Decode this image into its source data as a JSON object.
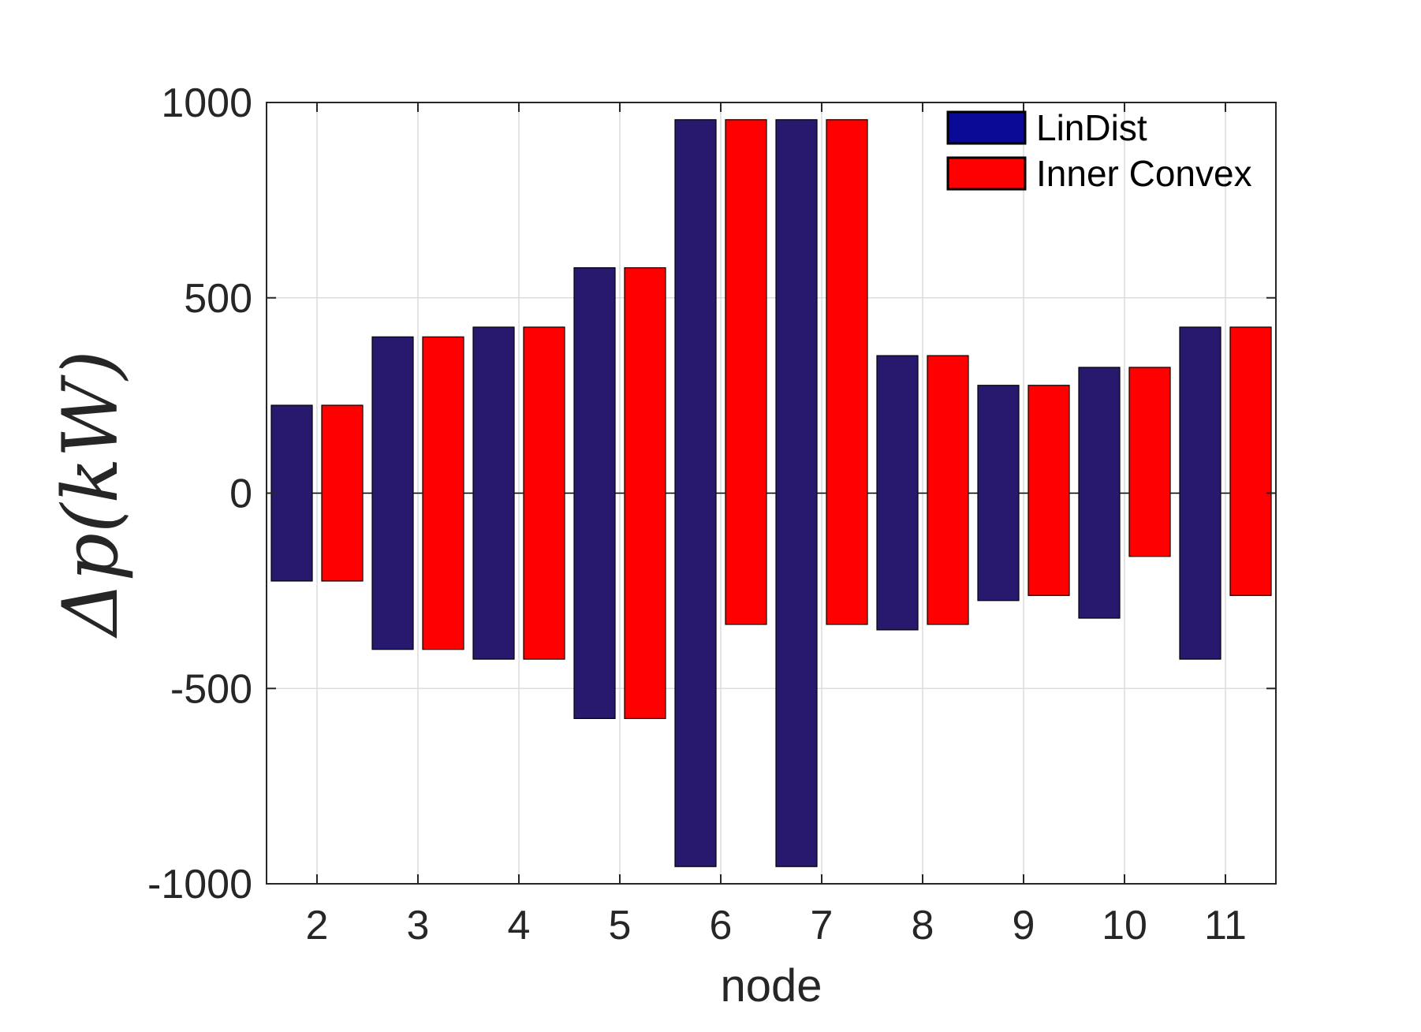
{
  "chart_data": {
    "type": "bar",
    "title": "",
    "xlabel": "node",
    "ylabel": "Δp(kW)",
    "categories": [
      "2",
      "3",
      "4",
      "5",
      "6",
      "7",
      "8",
      "9",
      "10",
      "11"
    ],
    "ylim": [
      -1000,
      1000
    ],
    "yticks": [
      {
        "value": 1000,
        "label": "1000"
      },
      {
        "value": 500,
        "label": "500"
      },
      {
        "value": 0,
        "label": "0"
      },
      {
        "value": -500,
        "label": "-500"
      },
      {
        "value": -1000,
        "label": "-1000"
      }
    ],
    "grid": true,
    "legend_position": "top-right",
    "series": [
      {
        "name": "LinDist",
        "color": "#28196e",
        "legend_color": "#0a0a96",
        "upper": [
          225,
          400,
          425,
          577,
          956,
          956,
          352,
          276,
          322,
          425
        ],
        "lower": [
          -225,
          -400,
          -425,
          -577,
          -956,
          -956,
          -350,
          -275,
          -320,
          -425
        ]
      },
      {
        "name": "Inner Convex",
        "color": "#ff0000",
        "legend_color": "#ff0000",
        "upper": [
          225,
          400,
          425,
          577,
          956,
          956,
          352,
          276,
          322,
          425
        ],
        "lower": [
          -225,
          -400,
          -425,
          -577,
          -336,
          -336,
          -336,
          -262,
          -162,
          -262
        ]
      }
    ]
  }
}
